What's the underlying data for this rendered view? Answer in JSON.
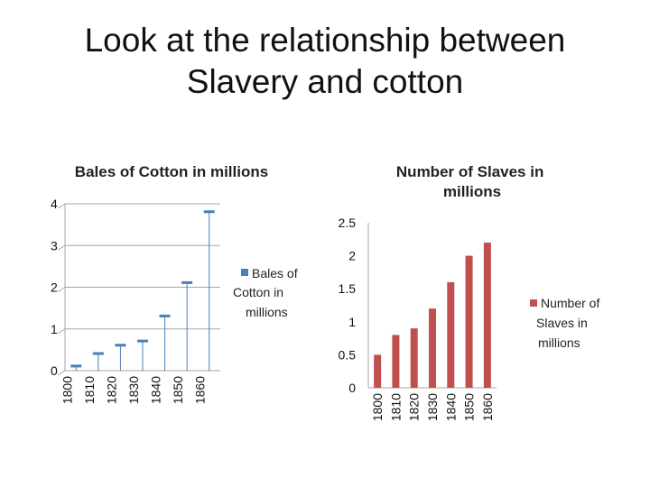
{
  "slide": {
    "title_line1": "Look at the relationship between",
    "title_line2": "Slavery and cotton"
  },
  "chart_data": [
    {
      "type": "bar",
      "title": "Bales of Cotton in millions",
      "categories": [
        "1800",
        "1810",
        "1820",
        "1830",
        "1840",
        "1850",
        "1860"
      ],
      "series": [
        {
          "name": "Bales of Cotton in millions",
          "values": [
            0.1,
            0.4,
            0.6,
            0.7,
            1.3,
            2.1,
            3.8
          ],
          "color": "#4a7ebb"
        }
      ],
      "ylim": [
        0,
        4
      ],
      "yticks": [
        "0",
        "1",
        "2",
        "3",
        "4"
      ],
      "legend": "right"
    },
    {
      "type": "bar",
      "title": "Number of Slaves in millions",
      "categories": [
        "1800",
        "1810",
        "1820",
        "1830",
        "1840",
        "1850",
        "1860"
      ],
      "series": [
        {
          "name": "Number of Slaves in millions",
          "values": [
            0.5,
            0.8,
            0.9,
            1.2,
            1.6,
            2.0,
            2.2
          ],
          "color": "#c0504d"
        }
      ],
      "ylim": [
        0,
        2.5
      ],
      "yticks": [
        "0",
        "0.5",
        "1",
        "1.5",
        "2",
        "2.5"
      ],
      "legend": "right"
    }
  ]
}
